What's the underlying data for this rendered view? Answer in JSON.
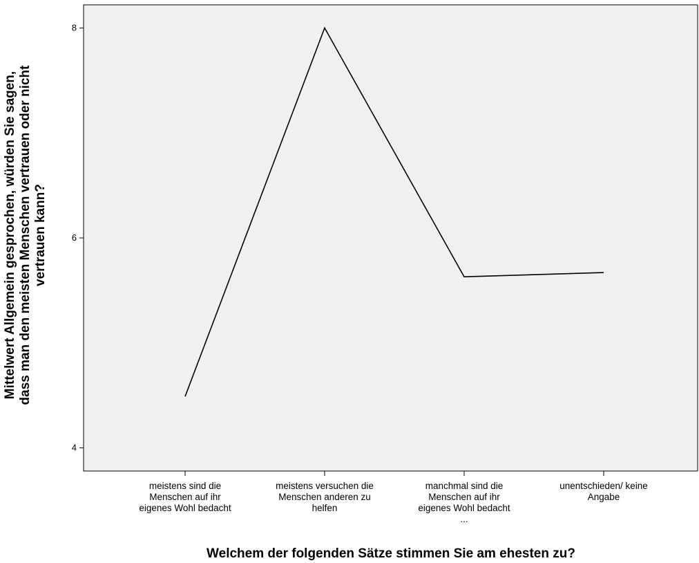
{
  "chart_data": {
    "type": "line",
    "title": "",
    "xlabel": "Welchem der folgenden Sätze stimmen Sie am ehesten zu?",
    "ylabel_lines": [
      "Mittelwert Allgemein gesprochen, würden Sie sagen,",
      "dass man den meisten Menschen vertrauen oder nicht",
      "vertrauen kann?"
    ],
    "categories": [
      [
        "meistens sind die",
        "Menschen auf ihr",
        "eigenes Wohl bedacht"
      ],
      [
        "meistens versuchen die",
        "Menschen anderen zu",
        "helfen"
      ],
      [
        "manchmal sind die",
        "Menschen auf ihr",
        "eigenes Wohl bedacht",
        "..."
      ],
      [
        "unentschieden/ keine",
        "Angabe"
      ]
    ],
    "values": [
      4.49,
      8.0,
      5.63,
      5.67
    ],
    "ylim": [
      3.78,
      8.22
    ],
    "yticks": [
      4,
      6,
      8
    ],
    "grid": false,
    "colors": {
      "plot_background": "#f0f0f0",
      "line": "#000000",
      "axis": "#000000"
    }
  }
}
